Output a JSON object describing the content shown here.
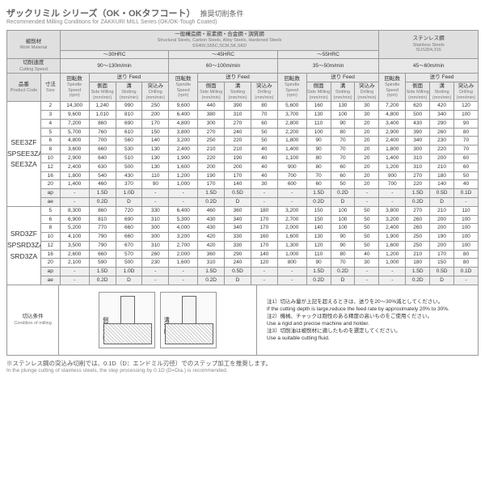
{
  "title_jp": "ザックリミル シリーズ（OK・OKタフコート）",
  "title_sub": "推奨切削条件",
  "title_en": "Recommended Milling Conditions for ZAKKURI MILL Series (OK/OK-Tough Coated)",
  "headers": {
    "work_jp": "被削材",
    "work_en": "Work Material",
    "mat1_jp": "一般構造鋼・炭素鋼・合金鋼・調質鋼",
    "mat1_en": "Structural Steels, Carbon Steels, Alloy Steels, Hardened Steels",
    "mat1_grade": "SS400,S55C,SCM,SK,SKD",
    "mat2_jp": "ステンレス鋼",
    "mat2_en": "Stainless Steels",
    "mat2_grade": "SUS304,316",
    "hrc1": "～30HRC",
    "hrc2": "～45HRC",
    "hrc3": "～55HRC",
    "speed_jp": "切削速度",
    "speed_en": "Cutting Speed",
    "spd1": "90～130m/min",
    "spd2": "60～100m/min",
    "spd3": "35～50m/min",
    "spd4": "45～60m/min",
    "prod_jp": "品番",
    "prod_en": "Product Code",
    "size_jp": "寸法",
    "size_en": "Size",
    "rpm_jp": "回転数",
    "rpm_en": "Spindle Speed",
    "rpm_u": "(rpm)",
    "feed_jp": "送り",
    "feed_en": "Feed",
    "side_jp": "側面",
    "side_en": "Side Milling",
    "side_u": "(mm/min)",
    "slot_jp": "溝",
    "slot_en": "Slotting",
    "slot_u": "(mm/min)",
    "drill_jp": "突込み",
    "drill_en": "Drilling",
    "drill_u": "(mm/min)"
  },
  "products": [
    "SEE3ZF\nSPSEE3ZA\nSEE3ZA",
    "SRD3ZF\nSPSRD3ZA\nSRD3ZA"
  ],
  "rows1": [
    [
      "2",
      "14,300",
      "1,240",
      "990",
      "250",
      "9,600",
      "440",
      "390",
      "80",
      "5,600",
      "160",
      "130",
      "30",
      "7,200",
      "620",
      "420",
      "120"
    ],
    [
      "3",
      "9,600",
      "1,010",
      "810",
      "200",
      "6,400",
      "380",
      "310",
      "70",
      "3,700",
      "130",
      "100",
      "30",
      "4,800",
      "500",
      "340",
      "100"
    ],
    [
      "4",
      "7,200",
      "860",
      "690",
      "170",
      "4,800",
      "300",
      "270",
      "60",
      "2,800",
      "110",
      "90",
      "20",
      "3,400",
      "430",
      "290",
      "90"
    ],
    [
      "5",
      "5,700",
      "760",
      "610",
      "150",
      "3,800",
      "270",
      "240",
      "50",
      "2,200",
      "100",
      "80",
      "20",
      "2,900",
      "390",
      "260",
      "80"
    ],
    [
      "6",
      "4,800",
      "700",
      "560",
      "140",
      "3,200",
      "250",
      "220",
      "50",
      "1,800",
      "90",
      "70",
      "20",
      "2,400",
      "340",
      "230",
      "70"
    ],
    [
      "8",
      "3,600",
      "660",
      "530",
      "130",
      "2,400",
      "210",
      "210",
      "40",
      "1,400",
      "90",
      "70",
      "20",
      "1,800",
      "300",
      "220",
      "70"
    ],
    [
      "10",
      "2,900",
      "640",
      "510",
      "130",
      "1,900",
      "220",
      "190",
      "40",
      "1,100",
      "80",
      "70",
      "20",
      "1,400",
      "310",
      "200",
      "60"
    ],
    [
      "12",
      "2,400",
      "630",
      "500",
      "130",
      "1,600",
      "200",
      "200",
      "40",
      "900",
      "80",
      "60",
      "20",
      "1,200",
      "310",
      "210",
      "60"
    ],
    [
      "16",
      "1,800",
      "540",
      "430",
      "110",
      "1,200",
      "190",
      "170",
      "40",
      "700",
      "70",
      "60",
      "20",
      "900",
      "270",
      "180",
      "50"
    ],
    [
      "20",
      "1,400",
      "460",
      "370",
      "90",
      "1,000",
      "170",
      "140",
      "30",
      "600",
      "60",
      "50",
      "20",
      "700",
      "220",
      "140",
      "40"
    ],
    [
      "ap",
      "-",
      "1.5D",
      "1.0D",
      "-",
      "-",
      "1.5D",
      "0.5D",
      "-",
      "-",
      "1.5D",
      "0.2D",
      "-",
      "-",
      "1.5D",
      "0.5D",
      "0.1D"
    ],
    [
      "ae",
      "-",
      "0.2D",
      "D",
      "-",
      "-",
      "0.2D",
      "D",
      "-",
      "-",
      "0.2D",
      "D",
      "-",
      "-",
      "0.2D",
      "D",
      "-"
    ]
  ],
  "rows2": [
    [
      "5",
      "8,300",
      "860",
      "720",
      "330",
      "6,400",
      "460",
      "360",
      "180",
      "3,200",
      "150",
      "100",
      "50",
      "3,800",
      "270",
      "210",
      "110"
    ],
    [
      "6",
      "6,900",
      "810",
      "690",
      "310",
      "5,300",
      "430",
      "340",
      "170",
      "2,700",
      "150",
      "100",
      "50",
      "3,200",
      "260",
      "200",
      "100"
    ],
    [
      "8",
      "5,200",
      "770",
      "660",
      "300",
      "4,000",
      "430",
      "340",
      "170",
      "2,000",
      "140",
      "100",
      "50",
      "2,400",
      "260",
      "200",
      "100"
    ],
    [
      "10",
      "4,100",
      "790",
      "660",
      "300",
      "3,200",
      "420",
      "330",
      "160",
      "1,600",
      "130",
      "90",
      "50",
      "1,900",
      "250",
      "190",
      "100"
    ],
    [
      "12",
      "3,500",
      "790",
      "670",
      "310",
      "2,700",
      "420",
      "330",
      "170",
      "1,300",
      "120",
      "90",
      "50",
      "1,600",
      "250",
      "200",
      "100"
    ],
    [
      "16",
      "2,600",
      "660",
      "570",
      "260",
      "2,000",
      "360",
      "290",
      "140",
      "1,000",
      "110",
      "80",
      "40",
      "1,200",
      "210",
      "170",
      "80"
    ],
    [
      "20",
      "2,100",
      "590",
      "500",
      "230",
      "1,600",
      "310",
      "240",
      "120",
      "800",
      "90",
      "70",
      "30",
      "1,000",
      "180",
      "150",
      "80"
    ],
    [
      "ap",
      "-",
      "1.5D",
      "1.0D",
      "-",
      "-",
      "1.5D",
      "0.5D",
      "-",
      "-",
      "1.5D",
      "0.2D",
      "-",
      "-",
      "1.5D",
      "0.5D",
      "0.1D"
    ],
    [
      "ae",
      "-",
      "0.2D",
      "D",
      "-",
      "-",
      "0.2D",
      "D",
      "-",
      "-",
      "0.2D",
      "D",
      "-",
      "-",
      "0.2D",
      "D",
      "-"
    ]
  ],
  "cond_jp": "切込条件",
  "cond_en": "Condition of milling",
  "diag1_jp": "側面切削",
  "diag1_en": "Side Milling",
  "diag2_jp": "溝切削",
  "diag2_en": "Slotting",
  "notes": [
    "注1）切込み量が上記を超えるときは、送りを20～30%減としてください。",
    "If the cutting depth is large,reduce the feed rate by approximately 20% to 30%.",
    "注2）機械、チャックは剛性のある精度の高いものをご使用ください。",
    "Use a rigid and precise machine and holder.",
    "注3）切削油は被削材に適したものを選定してください。",
    "Use a suitable cutting fluid."
  ],
  "footnote_jp": "※ステンレス鋼の突込み切削では、0.1D（D：エンドミル刃径）でのステップ加工を推奨します。",
  "footnote_en": "In the plunge cutting of stainless steels, the step processing by 0.1D (D=Dia.) is recommended."
}
